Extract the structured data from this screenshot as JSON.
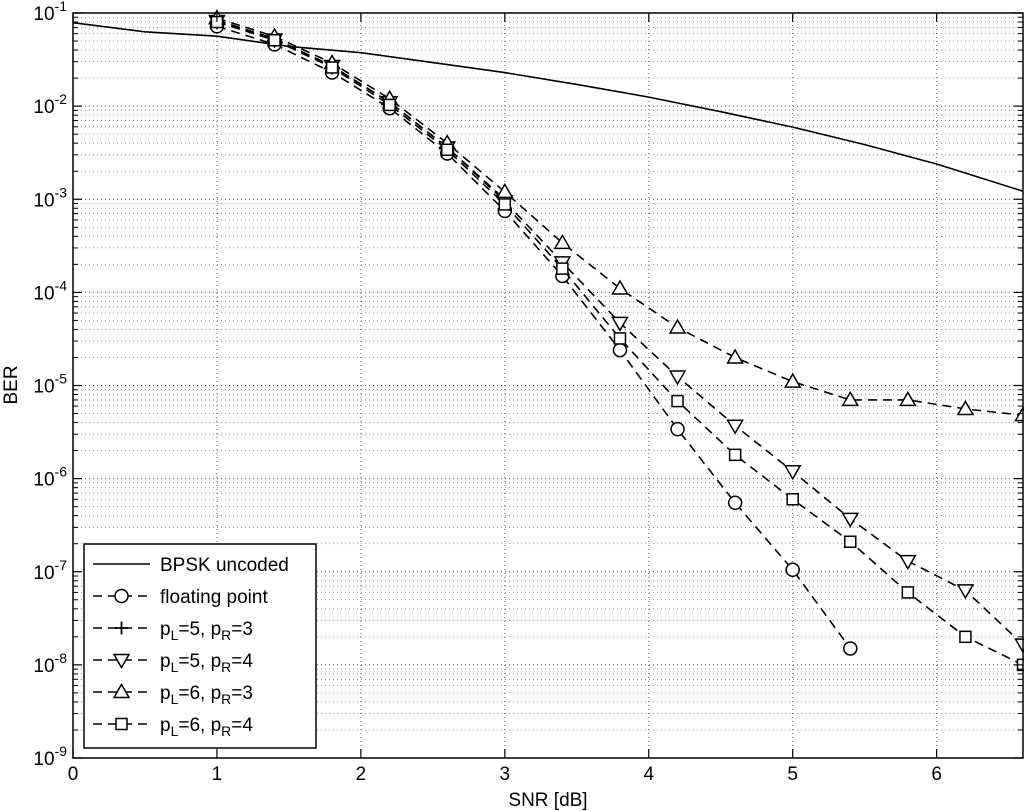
{
  "chart_data": {
    "type": "line",
    "title": "",
    "xlabel": "SNR [dB]",
    "ylabel": "BER",
    "xlim": [
      0,
      6.6
    ],
    "ylim": [
      1e-09,
      0.1
    ],
    "yscale": "log",
    "grid": true,
    "legend_position": "bottom-left",
    "x_ticks": [
      0,
      1,
      2,
      3,
      4,
      5,
      6
    ],
    "x_tick_labels": [
      "0",
      "1",
      "2",
      "3",
      "4",
      "5",
      "6"
    ],
    "y_ticks": [
      {
        "value": 1e-09,
        "exp": "-9"
      },
      {
        "value": 1e-08,
        "exp": "-8"
      },
      {
        "value": 1e-07,
        "exp": "-7"
      },
      {
        "value": 1e-06,
        "exp": "-6"
      },
      {
        "value": 1e-05,
        "exp": "-5"
      },
      {
        "value": 0.0001,
        "exp": "-4"
      },
      {
        "value": 0.001,
        "exp": "-3"
      },
      {
        "value": 0.01,
        "exp": "-2"
      },
      {
        "value": 0.1,
        "exp": "-1"
      }
    ],
    "y_tick_base": "10",
    "series": [
      {
        "name": "BPSK uncoded",
        "line": "solid",
        "marker": "none",
        "x": [
          0,
          0.5,
          1,
          1.5,
          2,
          2.5,
          3,
          3.5,
          4,
          4.5,
          5,
          5.5,
          6,
          6.6
        ],
        "y": [
          0.0786,
          0.0629,
          0.0563,
          0.0438,
          0.0375,
          0.0293,
          0.0229,
          0.0171,
          0.0125,
          0.00872,
          0.00595,
          0.00386,
          0.00239,
          0.00122
        ]
      },
      {
        "name": "floating point",
        "legend_parts": [
          "floating point"
        ],
        "line": "dashed",
        "marker": "circle",
        "x": [
          1,
          1.4,
          1.8,
          2.2,
          2.6,
          3,
          3.4,
          3.8,
          4.2,
          4.6,
          5,
          5.4
        ],
        "y": [
          0.072,
          0.046,
          0.023,
          0.0095,
          0.0031,
          0.00075,
          0.00015,
          2.4e-05,
          3.4e-06,
          5.5e-07,
          1.05e-07,
          1.5e-08
        ]
      },
      {
        "name": "pL=5, pR=3",
        "legend_parts": [
          "p",
          "L",
          "=5, p",
          "R",
          "=3"
        ],
        "line": "dashed",
        "marker": "plus",
        "x": [
          1,
          1.4,
          1.8,
          2.2,
          2.6,
          3
        ],
        "y": [
          0.084,
          0.053,
          0.027,
          0.011,
          0.0036,
          0.001
        ]
      },
      {
        "name": "pL=5, pR=4",
        "legend_parts": [
          "p",
          "L",
          "=5, p",
          "R",
          "=4"
        ],
        "line": "dashed",
        "marker": "triangle-down",
        "x": [
          1,
          1.4,
          1.8,
          2.2,
          2.6,
          3,
          3.4,
          3.8,
          4.2,
          4.6,
          5,
          5.4,
          5.8,
          6.2,
          6.6
        ],
        "y": [
          0.082,
          0.052,
          0.027,
          0.011,
          0.0036,
          0.00095,
          0.00021,
          4.7e-05,
          1.25e-05,
          3.7e-06,
          1.2e-06,
          3.7e-07,
          1.3e-07,
          6.3e-08,
          1.65e-08
        ]
      },
      {
        "name": "pL=6, pR=3",
        "legend_parts": [
          "p",
          "L",
          "=6, p",
          "R",
          "=3"
        ],
        "line": "dashed",
        "marker": "triangle-up",
        "x": [
          1,
          1.4,
          1.8,
          2.2,
          2.6,
          3,
          3.4,
          3.8,
          4.2,
          4.6,
          5,
          5.4,
          5.8,
          6.2,
          6.6
        ],
        "y": [
          0.088,
          0.056,
          0.029,
          0.012,
          0.004,
          0.0012,
          0.00034,
          0.00011,
          4.2e-05,
          2e-05,
          1.1e-05,
          7e-06,
          7e-06,
          5.6e-06,
          4.8e-06
        ]
      },
      {
        "name": "pL=6, pR=4",
        "legend_parts": [
          "p",
          "L",
          "=6, p",
          "R",
          "=4"
        ],
        "line": "dashed",
        "marker": "square",
        "x": [
          1,
          1.4,
          1.8,
          2.2,
          2.6,
          3,
          3.4,
          3.8,
          4.2,
          4.6,
          5,
          5.4,
          5.8,
          6.2,
          6.6
        ],
        "y": [
          0.08,
          0.051,
          0.026,
          0.0103,
          0.0034,
          0.00088,
          0.00018,
          3.2e-05,
          6.8e-06,
          1.8e-06,
          6e-07,
          2.1e-07,
          6e-08,
          2e-08,
          1e-08
        ]
      }
    ]
  }
}
